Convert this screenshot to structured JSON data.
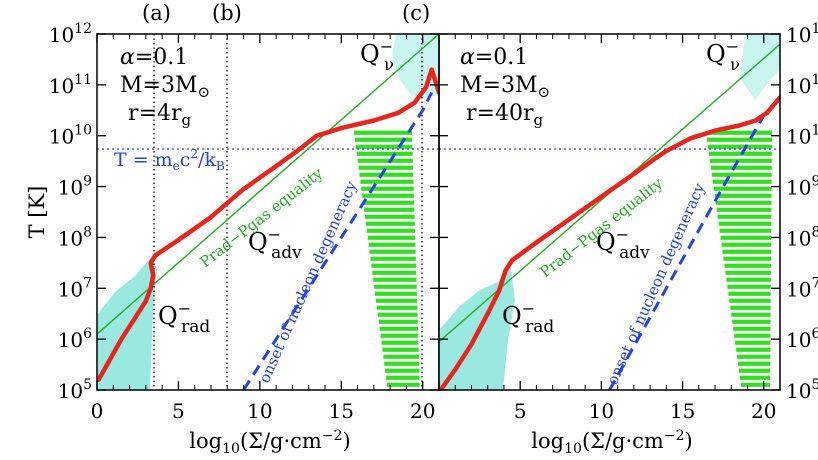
{
  "figure": {
    "ylabel": "T [K]",
    "xlabel_prefix": "log",
    "xlabel_sub": "10",
    "xlabel_mid": "(Σ/g·cm",
    "xlabel_sup": "−2",
    "xlabel_end": ")",
    "markers": [
      {
        "label": "(a)",
        "x": 3.5
      },
      {
        "label": "(b)",
        "x": 8.0
      },
      {
        "label": "(c)",
        "x": 20.0
      }
    ],
    "temperature_line": {
      "value_log": 9.78,
      "label_T": "T",
      "label_eq": "=",
      "label_m": "m",
      "label_m_sub": "e",
      "label_c": "c",
      "label_c_sup": "2",
      "label_div": "/k",
      "label_k_sub": "B"
    },
    "region_labels": {
      "Q": "Q",
      "minus": "−",
      "rad": "rad",
      "adv": "adv",
      "nu": "ν"
    },
    "curve_labels": {
      "equality": "Prad−Pgas equality",
      "degeneracy": "onset of nucleon degeneracy"
    },
    "colors": {
      "red": "#e8241c",
      "green": "#1fb21f",
      "cyan": "#7fe3d8",
      "blue": "#2442e6",
      "stripe": "#33dd22"
    }
  },
  "chart_data": [
    {
      "type": "line",
      "panel": "left",
      "xlim": [
        0,
        21
      ],
      "ylim_log10": [
        5,
        12
      ],
      "xticks": [
        0,
        5,
        10,
        15,
        20
      ],
      "yticks_exp": [
        "5",
        "6",
        "7",
        "8",
        "9",
        "10",
        "11",
        "12"
      ],
      "ytick_base": "10",
      "params": {
        "alpha_sym": "α",
        "alpha": "=0.1",
        "M_sym": "M",
        "M": "=3M",
        "M_sub": "⊙",
        "r_sym": "r",
        "r": "=4r",
        "r_sub": "g"
      },
      "series": [
        {
          "name": "equilibrium curve (red)",
          "x": [
            0.1,
            0.8,
            1.5,
            2.3,
            3.0,
            3.3,
            3.45,
            3.3,
            3.6,
            5.0,
            7.0,
            9.0,
            11.0,
            12.5,
            13.5,
            15.0,
            17.0,
            18.5,
            19.5,
            20.2,
            20.55,
            21.0
          ],
          "y": [
            5.2,
            5.6,
            6.0,
            6.4,
            6.75,
            7.0,
            7.25,
            7.5,
            7.65,
            7.95,
            8.4,
            8.95,
            9.4,
            9.75,
            10.0,
            10.15,
            10.3,
            10.45,
            10.65,
            10.95,
            11.3,
            10.85
          ]
        },
        {
          "name": "Prad-Pgas equality",
          "x": [
            0,
            21
          ],
          "y": [
            6.1,
            12.0
          ]
        },
        {
          "name": "onset of nucleon degeneracy",
          "x": [
            9.0,
            13.0,
            17.0,
            20.0,
            20.55
          ],
          "y": [
            5.0,
            7.0,
            9.0,
            10.5,
            10.85
          ]
        }
      ]
    },
    {
      "type": "line",
      "panel": "right",
      "xlim": [
        0,
        21
      ],
      "ylim_log10": [
        5,
        12
      ],
      "xticks": [
        0,
        5,
        10,
        15,
        20
      ],
      "yticks_exp": [
        "5",
        "6",
        "7",
        "8",
        "9",
        "10",
        "11",
        "12"
      ],
      "ytick_base": "10",
      "params": {
        "alpha_sym": "α",
        "alpha": "=0.1",
        "M_sym": "M",
        "M": "=3M",
        "M_sub": "⊙",
        "r_sym": "r",
        "r": "=40r",
        "r_sub": "g"
      },
      "series": [
        {
          "name": "equilibrium curve (red)",
          "x": [
            0.1,
            1.0,
            2.0,
            3.0,
            3.7,
            3.9,
            4.1,
            4.5,
            6.0,
            8.0,
            10.0,
            12.0,
            13.3,
            14.0,
            15.5,
            17.0,
            18.5,
            19.5,
            20.2,
            21.0
          ],
          "y": [
            5.0,
            5.4,
            5.9,
            6.5,
            6.95,
            7.15,
            7.35,
            7.55,
            7.9,
            8.35,
            8.8,
            9.25,
            9.55,
            9.7,
            9.95,
            10.1,
            10.2,
            10.3,
            10.45,
            10.75
          ]
        },
        {
          "name": "Prad-Pgas equality",
          "x": [
            0,
            21
          ],
          "y": [
            5.95,
            11.8
          ]
        },
        {
          "name": "onset of nucleon degeneracy",
          "x": [
            10.5,
            14.0,
            17.5,
            20.0
          ],
          "y": [
            5.0,
            7.0,
            9.0,
            10.4
          ]
        }
      ]
    }
  ]
}
